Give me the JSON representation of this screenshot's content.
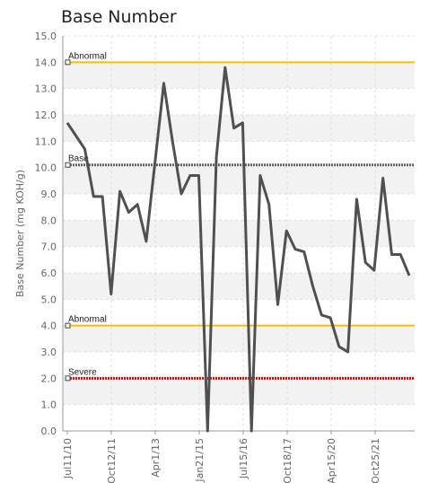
{
  "chart_data": {
    "type": "line",
    "title": "Base Number",
    "xlabel": "",
    "ylabel": "Base Number (mg KOH/g)",
    "ylim": [
      0,
      15
    ],
    "y_ticks": [
      "0.0",
      "1.0",
      "2.0",
      "3.0",
      "4.0",
      "5.0",
      "6.0",
      "7.0",
      "8.0",
      "9.0",
      "10.0",
      "11.0",
      "12.0",
      "13.0",
      "14.0",
      "15.0"
    ],
    "x_tick_labels": [
      "Jul11/10",
      "Oct12/11",
      "Apr1/13",
      "Jan21/15",
      "Jul15/16",
      "Oct18/17",
      "Apr15/20",
      "Oct25/21"
    ],
    "grid": true,
    "colors": {
      "line": "#505050",
      "abnormal": "#f5c000",
      "base": "#606060",
      "severe": "#e00000",
      "band": "#f2f2f2"
    },
    "reference_lines": [
      {
        "label": "Abnormal",
        "value": 14.0,
        "color": "#f5c000",
        "style": "solid"
      },
      {
        "label": "Base",
        "value": 10.1,
        "color": "#606060",
        "style": "dotted"
      },
      {
        "label": "Abnormal",
        "value": 4.0,
        "color": "#f5c000",
        "style": "solid"
      },
      {
        "label": "Severe",
        "value": 2.0,
        "color": "#e00000",
        "style": "dotted"
      }
    ],
    "series": [
      {
        "values": [
          11.7,
          11.2,
          10.7,
          8.9,
          8.9,
          5.2,
          9.1,
          8.3,
          8.6,
          7.2,
          10.2,
          13.2,
          11.0,
          9.0,
          9.7,
          9.7,
          0.0,
          10.4,
          13.8,
          11.5,
          11.7,
          0.0,
          9.7,
          8.6,
          4.8,
          7.6,
          6.9,
          6.8,
          5.5,
          4.4,
          4.3,
          3.2,
          3.0,
          8.8,
          6.4,
          6.1,
          9.6,
          6.7,
          6.7,
          5.9
        ]
      }
    ]
  }
}
